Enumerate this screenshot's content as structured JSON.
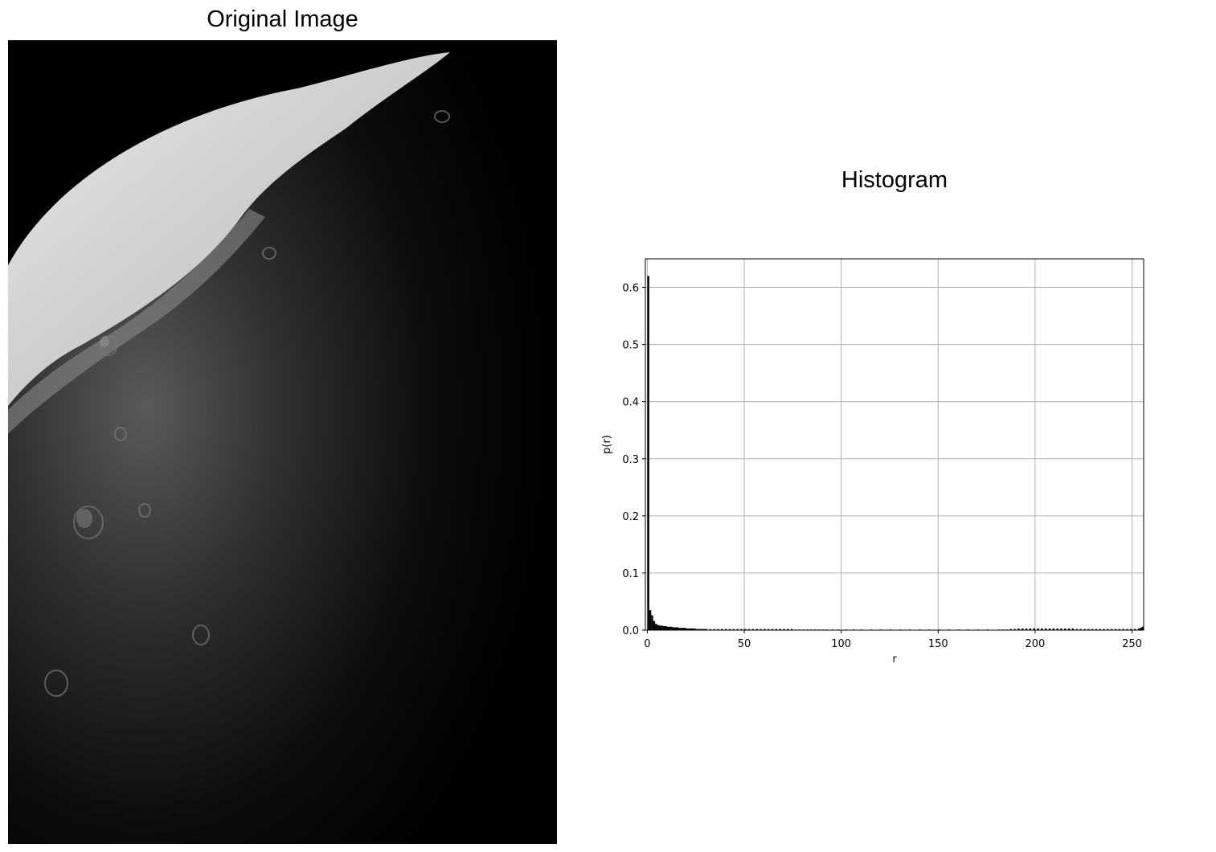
{
  "left_panel": {
    "title": "Original Image",
    "image_description_icon": "moon-surface-photo"
  },
  "chart_data": {
    "type": "bar",
    "title": "Histogram",
    "xlabel": "r",
    "ylabel": "p(r)",
    "xlim": [
      -1,
      256
    ],
    "ylim": [
      0,
      0.65
    ],
    "xticks": [
      0,
      50,
      100,
      150,
      200,
      250
    ],
    "yticks": [
      0.0,
      0.1,
      0.2,
      0.3,
      0.4,
      0.5,
      0.6
    ],
    "xtick_labels": [
      "0",
      "50",
      "100",
      "150",
      "200",
      "250"
    ],
    "ytick_labels": [
      "0.0",
      "0.1",
      "0.2",
      "0.3",
      "0.4",
      "0.5",
      "0.6"
    ],
    "grid": true,
    "bar_color": "#000000",
    "bins": [
      [
        0,
        0.62
      ],
      [
        1,
        0.035
      ],
      [
        2,
        0.026
      ],
      [
        3,
        0.016
      ],
      [
        4,
        0.011
      ],
      [
        5,
        0.009
      ],
      [
        6,
        0.008
      ],
      [
        7,
        0.008
      ],
      [
        8,
        0.007
      ],
      [
        9,
        0.007
      ],
      [
        10,
        0.006
      ],
      [
        11,
        0.006
      ],
      [
        12,
        0.006
      ],
      [
        13,
        0.005
      ],
      [
        14,
        0.005
      ],
      [
        15,
        0.005
      ],
      [
        16,
        0.004
      ],
      [
        17,
        0.004
      ],
      [
        18,
        0.004
      ],
      [
        19,
        0.004
      ],
      [
        20,
        0.003
      ],
      [
        21,
        0.003
      ],
      [
        22,
        0.003
      ],
      [
        23,
        0.003
      ],
      [
        24,
        0.003
      ],
      [
        25,
        0.002
      ],
      [
        26,
        0.002
      ],
      [
        27,
        0.002
      ],
      [
        28,
        0.002
      ],
      [
        29,
        0.002
      ],
      [
        30,
        0.002
      ],
      [
        32,
        0.002
      ],
      [
        34,
        0.002
      ],
      [
        36,
        0.002
      ],
      [
        38,
        0.002
      ],
      [
        40,
        0.002
      ],
      [
        42,
        0.002
      ],
      [
        44,
        0.002
      ],
      [
        46,
        0.002
      ],
      [
        48,
        0.002
      ],
      [
        50,
        0.002
      ],
      [
        52,
        0.002
      ],
      [
        54,
        0.002
      ],
      [
        56,
        0.002
      ],
      [
        58,
        0.002
      ],
      [
        60,
        0.002
      ],
      [
        62,
        0.002
      ],
      [
        64,
        0.002
      ],
      [
        66,
        0.002
      ],
      [
        68,
        0.002
      ],
      [
        70,
        0.002
      ],
      [
        72,
        0.002
      ],
      [
        74,
        0.002
      ],
      [
        76,
        0.001
      ],
      [
        78,
        0.001
      ],
      [
        80,
        0.001
      ],
      [
        82,
        0.001
      ],
      [
        84,
        0.001
      ],
      [
        86,
        0.001
      ],
      [
        88,
        0.001
      ],
      [
        90,
        0.001
      ],
      [
        92,
        0.001
      ],
      [
        95,
        0.001
      ],
      [
        98,
        0.001
      ],
      [
        102,
        0.001
      ],
      [
        106,
        0.001
      ],
      [
        110,
        0.001
      ],
      [
        115,
        0.001
      ],
      [
        120,
        0.001
      ],
      [
        125,
        0.001
      ],
      [
        130,
        0.001
      ],
      [
        135,
        0.001
      ],
      [
        140,
        0.001
      ],
      [
        145,
        0.001
      ],
      [
        150,
        0.001
      ],
      [
        155,
        0.001
      ],
      [
        160,
        0.001
      ],
      [
        165,
        0.001
      ],
      [
        170,
        0.001
      ],
      [
        175,
        0.001
      ],
      [
        181,
        0.001
      ],
      [
        183,
        0.001
      ],
      [
        185,
        0.001
      ],
      [
        187,
        0.002
      ],
      [
        189,
        0.002
      ],
      [
        191,
        0.003
      ],
      [
        193,
        0.003
      ],
      [
        195,
        0.003
      ],
      [
        197,
        0.003
      ],
      [
        199,
        0.003
      ],
      [
        201,
        0.003
      ],
      [
        203,
        0.003
      ],
      [
        205,
        0.003
      ],
      [
        207,
        0.003
      ],
      [
        209,
        0.003
      ],
      [
        211,
        0.003
      ],
      [
        213,
        0.003
      ],
      [
        215,
        0.003
      ],
      [
        217,
        0.003
      ],
      [
        219,
        0.003
      ],
      [
        221,
        0.002
      ],
      [
        223,
        0.002
      ],
      [
        225,
        0.002
      ],
      [
        227,
        0.002
      ],
      [
        229,
        0.002
      ],
      [
        231,
        0.002
      ],
      [
        233,
        0.002
      ],
      [
        235,
        0.002
      ],
      [
        237,
        0.002
      ],
      [
        239,
        0.002
      ],
      [
        241,
        0.002
      ],
      [
        243,
        0.002
      ],
      [
        245,
        0.002
      ],
      [
        247,
        0.002
      ],
      [
        249,
        0.002
      ],
      [
        251,
        0.002
      ],
      [
        253,
        0.003
      ],
      [
        254,
        0.004
      ],
      [
        255,
        0.006
      ]
    ]
  }
}
